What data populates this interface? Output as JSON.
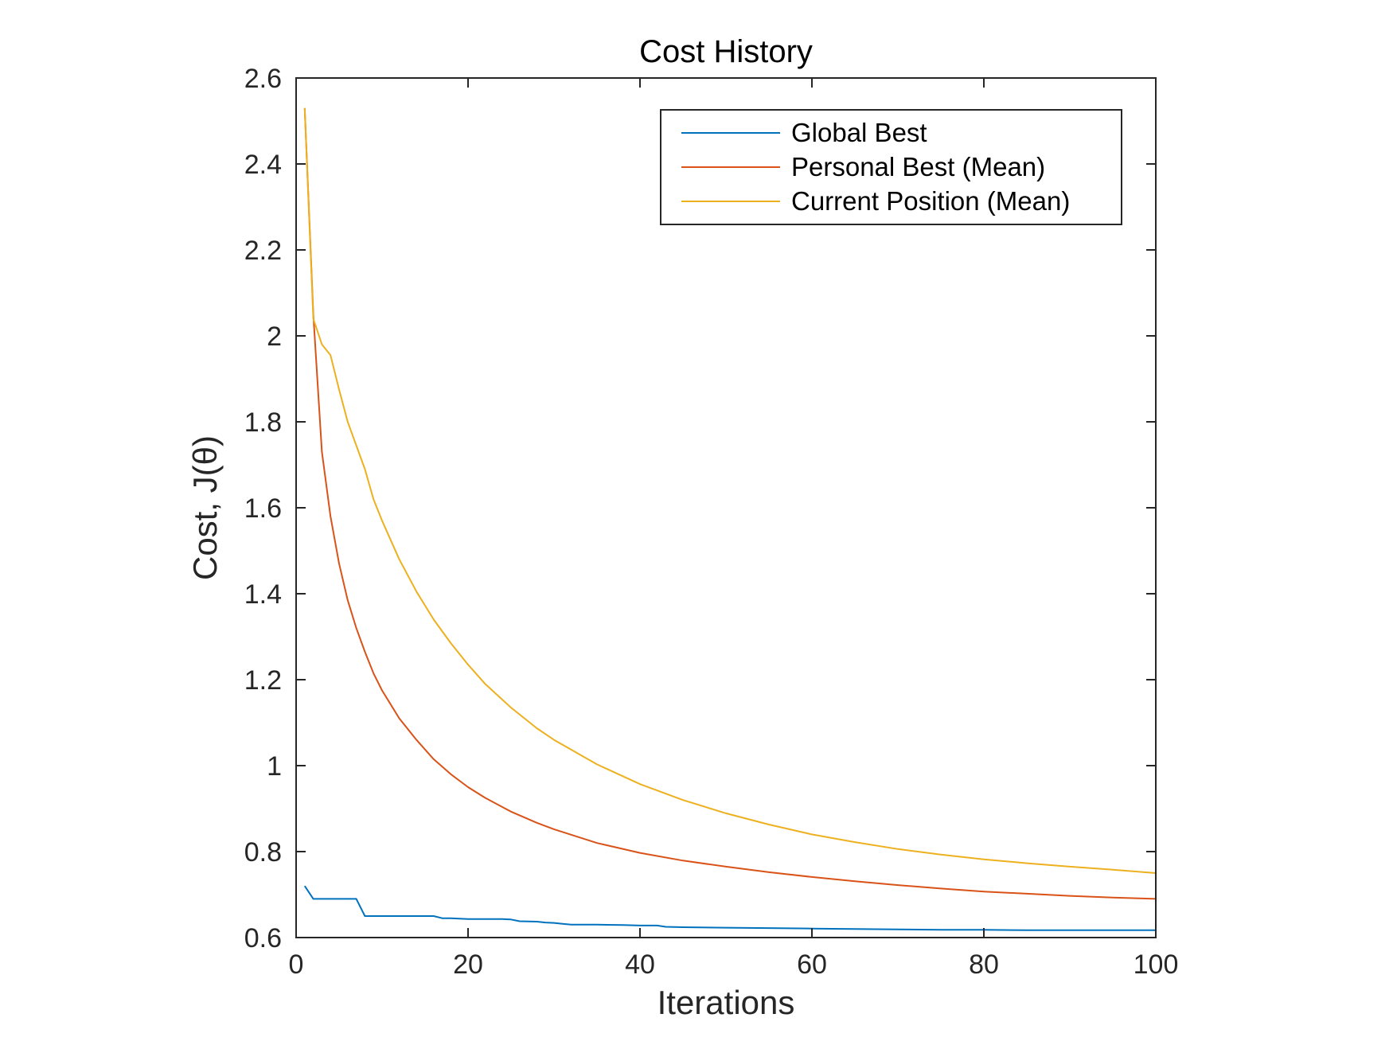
{
  "chart_data": {
    "type": "line",
    "title": "Cost History",
    "xlabel": "Iterations",
    "ylabel": "Cost, J(θ)",
    "xlim": [
      0,
      100
    ],
    "ylim": [
      0.6,
      2.6
    ],
    "xticks": [
      0,
      20,
      40,
      60,
      80,
      100
    ],
    "xtick_labels": [
      "0",
      "20",
      "40",
      "60",
      "80",
      "100"
    ],
    "yticks": [
      0.6,
      0.8,
      1.0,
      1.2,
      1.4,
      1.6,
      1.8,
      2.0,
      2.2,
      2.4,
      2.6
    ],
    "ytick_labels": [
      "0.6",
      "0.8",
      "1",
      "1.2",
      "1.4",
      "1.6",
      "1.8",
      "2",
      "2.2",
      "2.4",
      "2.6"
    ],
    "grid": false,
    "legend_position": "top-right",
    "series": [
      {
        "name": "Global Best",
        "color": "#0072BD",
        "x": [
          1,
          2,
          3,
          4,
          5,
          6,
          7,
          8,
          9,
          10,
          11,
          12,
          13,
          14,
          15,
          16,
          17,
          18,
          20,
          22,
          24,
          25,
          26,
          28,
          29,
          30,
          31,
          32,
          35,
          38,
          40,
          42,
          43,
          45,
          50,
          55,
          60,
          65,
          70,
          75,
          80,
          85,
          90,
          95,
          100
        ],
        "values": [
          0.72,
          0.69,
          0.69,
          0.69,
          0.69,
          0.69,
          0.69,
          0.65,
          0.65,
          0.65,
          0.65,
          0.65,
          0.65,
          0.65,
          0.65,
          0.65,
          0.645,
          0.645,
          0.643,
          0.643,
          0.643,
          0.642,
          0.638,
          0.637,
          0.635,
          0.634,
          0.632,
          0.63,
          0.63,
          0.629,
          0.628,
          0.628,
          0.625,
          0.624,
          0.623,
          0.622,
          0.621,
          0.62,
          0.619,
          0.618,
          0.618,
          0.617,
          0.617,
          0.617,
          0.617
        ]
      },
      {
        "name": "Personal Best (Mean)",
        "color": "#D95319",
        "x": [
          1,
          2,
          3,
          4,
          5,
          6,
          7,
          8,
          9,
          10,
          12,
          14,
          16,
          18,
          20,
          22,
          25,
          28,
          30,
          35,
          40,
          45,
          50,
          55,
          60,
          65,
          70,
          75,
          80,
          85,
          90,
          95,
          100
        ],
        "values": [
          2.53,
          2.05,
          1.73,
          1.58,
          1.47,
          1.385,
          1.32,
          1.265,
          1.215,
          1.175,
          1.11,
          1.06,
          1.015,
          0.98,
          0.95,
          0.925,
          0.893,
          0.867,
          0.852,
          0.82,
          0.797,
          0.779,
          0.765,
          0.752,
          0.741,
          0.731,
          0.722,
          0.714,
          0.707,
          0.702,
          0.697,
          0.693,
          0.69
        ]
      },
      {
        "name": "Current Position (Mean)",
        "color": "#EDB120",
        "x": [
          1,
          2,
          3,
          4,
          5,
          6,
          7,
          8,
          9,
          10,
          12,
          14,
          16,
          18,
          20,
          22,
          25,
          28,
          30,
          35,
          40,
          45,
          50,
          55,
          60,
          65,
          70,
          75,
          80,
          85,
          90,
          95,
          100
        ],
        "values": [
          2.53,
          2.04,
          1.98,
          1.955,
          1.875,
          1.8,
          1.745,
          1.69,
          1.62,
          1.57,
          1.48,
          1.405,
          1.34,
          1.285,
          1.235,
          1.19,
          1.135,
          1.087,
          1.06,
          1.003,
          0.957,
          0.92,
          0.889,
          0.863,
          0.84,
          0.822,
          0.806,
          0.793,
          0.782,
          0.773,
          0.765,
          0.758,
          0.75
        ]
      }
    ]
  }
}
